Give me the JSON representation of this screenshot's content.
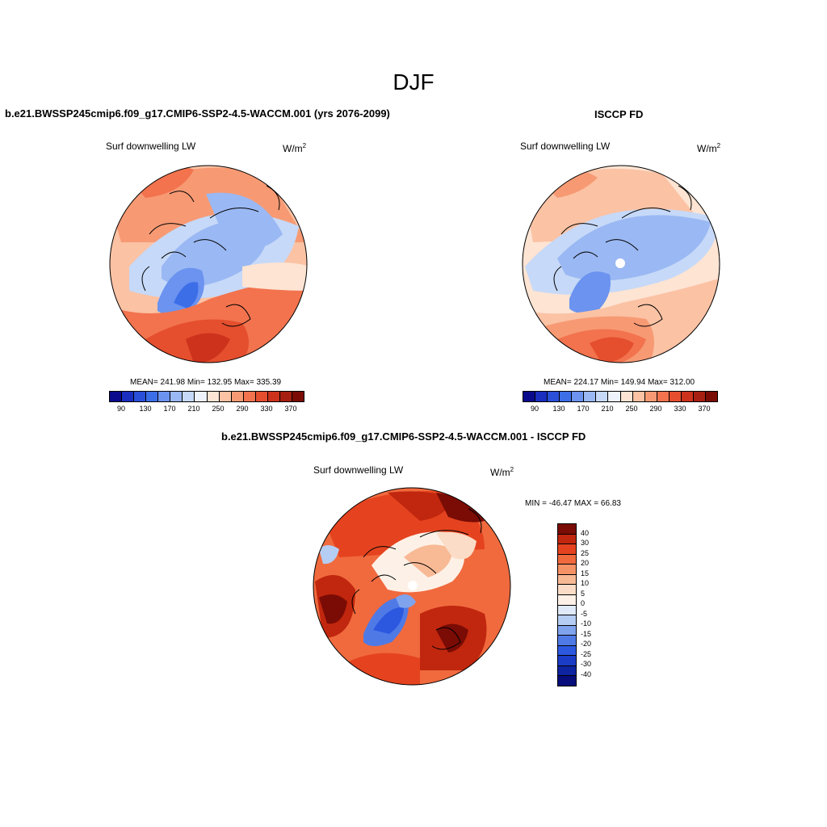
{
  "season": "DJF",
  "panel_left": {
    "title": "b.e21.BWSSP245cmip6.f09_g17.CMIP6-SSP2-4.5-WACCM.001 (yrs 2076-2099)",
    "variable": "Surf downwelling LW",
    "units_base": "W/m",
    "units_exp": "2",
    "stats": "MEAN= 241.98  Min= 132.95  Max= 335.39"
  },
  "panel_right": {
    "title": "ISCCP FD",
    "variable": "Surf downwelling LW",
    "units_base": "W/m",
    "units_exp": "2",
    "stats": "MEAN= 224.17  Min= 149.94  Max= 312.00"
  },
  "panel_diff": {
    "title": "b.e21.BWSSP245cmip6.f09_g17.CMIP6-SSP2-4.5-WACCM.001 - ISCCP FD",
    "variable": "Surf downwelling LW",
    "units_base": "W/m",
    "units_exp": "2",
    "minmax": "MIN = -46.47 MAX =  66.83"
  },
  "colorbar_main": {
    "colors": [
      "#0a0a8c",
      "#1a2ebf",
      "#2a4fd8",
      "#3c6ee8",
      "#6b93ef",
      "#9ab8f3",
      "#c6d9f8",
      "#eef3fb",
      "#fde4d3",
      "#fbc2a4",
      "#f79a74",
      "#f2734e",
      "#e54f2e",
      "#cc321c",
      "#a61f10",
      "#7a0c05"
    ],
    "tick_labels": [
      "90",
      "130",
      "170",
      "210",
      "250",
      "290",
      "330",
      "370"
    ]
  },
  "colorbar_diff": {
    "colors": [
      "#7a0c05",
      "#c1270e",
      "#e5431f",
      "#f06a3e",
      "#f59266",
      "#f8b995",
      "#fbdcc6",
      "#fdf1e7",
      "#dfe9f8",
      "#b5cdf3",
      "#7fa3ed",
      "#4f7ae6",
      "#2c58e0",
      "#1b3cc6",
      "#0e24a0",
      "#070d7a"
    ],
    "labels": [
      "40",
      "30",
      "25",
      "20",
      "15",
      "10",
      "5",
      "0",
      "-5",
      "-10",
      "-15",
      "-20",
      "-25",
      "-30",
      "-40"
    ]
  },
  "chart_data": [
    {
      "type": "heatmap",
      "title": "b.e21.BWSSP245cmip6.f09_g17.CMIP6-SSP2-4.5-WACCM.001 (yrs 2076-2099)",
      "variable": "Surf downwelling LW",
      "projection": "north polar stereographic",
      "colorbar_range": [
        90,
        370
      ],
      "colorbar_step": 20,
      "mean": 241.98,
      "min": 132.95,
      "max": 335.39
    },
    {
      "type": "heatmap",
      "title": "ISCCP FD",
      "variable": "Surf downwelling LW",
      "projection": "north polar stereographic",
      "colorbar_range": [
        90,
        370
      ],
      "colorbar_step": 20,
      "mean": 224.17,
      "min": 149.94,
      "max": 312.0
    },
    {
      "type": "heatmap",
      "title": "b.e21.BWSSP245cmip6.f09_g17.CMIP6-SSP2-4.5-WACCM.001 - ISCCP FD",
      "variable": "Surf downwelling LW",
      "projection": "north polar stereographic",
      "levels": [
        -40,
        -30,
        -25,
        -20,
        -15,
        -10,
        -5,
        0,
        5,
        10,
        15,
        20,
        25,
        30,
        40
      ],
      "min": -46.47,
      "max": 66.83
    }
  ]
}
